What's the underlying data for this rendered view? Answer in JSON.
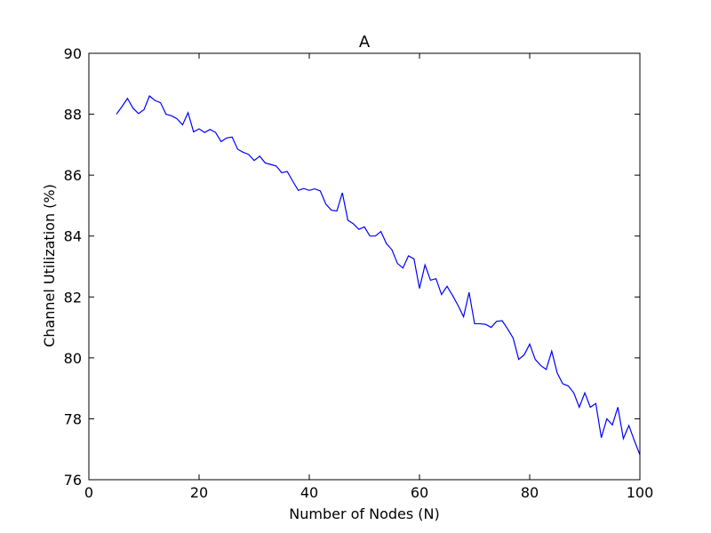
{
  "chart_data": {
    "type": "line",
    "title": "A",
    "xlabel": "Number of Nodes (N)",
    "ylabel": "Channel Utilization (%)",
    "xlim": [
      0,
      100
    ],
    "ylim": [
      76,
      90
    ],
    "xticks": [
      0,
      20,
      40,
      60,
      80,
      100
    ],
    "yticks": [
      76,
      78,
      80,
      82,
      84,
      86,
      88,
      90
    ],
    "grid": false,
    "line_color": "#0000ff",
    "series": [
      {
        "x": [
          5,
          6,
          7,
          8,
          9,
          10,
          11,
          12,
          13,
          14,
          15,
          16,
          17,
          18,
          19,
          20,
          21,
          22,
          23,
          24,
          25,
          26,
          27,
          28,
          29,
          30,
          31,
          32,
          33,
          34,
          35,
          36,
          37,
          38,
          39,
          40,
          41,
          42,
          43,
          44,
          45,
          46,
          47,
          48,
          49,
          50,
          51,
          52,
          53,
          54,
          55,
          56,
          57,
          58,
          59,
          60,
          61,
          62,
          63,
          64,
          65,
          66,
          67,
          68,
          69,
          70,
          71,
          72,
          73,
          74,
          75,
          76,
          77,
          78,
          79,
          80,
          81,
          82,
          83,
          84,
          85,
          86,
          87,
          88,
          89,
          90,
          91,
          92,
          93,
          94,
          95,
          96,
          97,
          98,
          99,
          100
        ],
        "values": [
          88.0,
          88.25,
          88.52,
          88.2,
          88.02,
          88.15,
          88.6,
          88.45,
          88.38,
          88.0,
          87.95,
          87.85,
          87.65,
          88.05,
          87.42,
          87.52,
          87.4,
          87.5,
          87.4,
          87.1,
          87.22,
          87.25,
          86.85,
          86.75,
          86.68,
          86.48,
          86.62,
          86.4,
          86.35,
          86.3,
          86.08,
          86.12,
          85.8,
          85.5,
          85.56,
          85.5,
          85.55,
          85.48,
          85.05,
          84.85,
          84.82,
          85.42,
          84.52,
          84.4,
          84.22,
          84.3,
          84.0,
          84.0,
          84.15,
          83.75,
          83.55,
          83.1,
          82.95,
          83.35,
          83.25,
          82.28,
          83.05,
          82.55,
          82.6,
          82.08,
          82.35,
          82.05,
          81.72,
          81.35,
          82.15,
          81.12,
          81.12,
          81.1,
          81.0,
          81.2,
          81.22,
          80.95,
          80.65,
          79.95,
          80.1,
          80.45,
          79.95,
          79.75,
          79.62,
          80.22,
          79.5,
          79.15,
          79.08,
          78.85,
          78.38,
          78.85,
          78.38,
          78.5,
          77.38,
          78.0,
          77.8,
          78.38,
          77.35,
          77.78,
          77.28,
          76.82
        ]
      }
    ]
  }
}
